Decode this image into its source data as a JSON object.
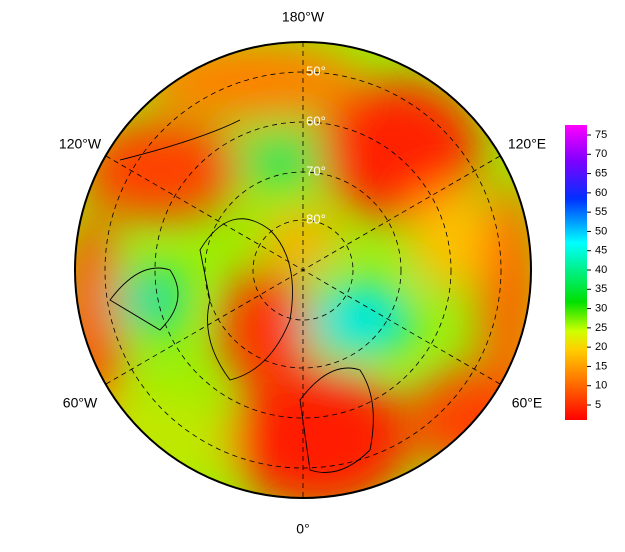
{
  "map": {
    "longitude_labels": [
      "180°W",
      "120°W",
      "120°E",
      "60°W",
      "60°E",
      "0°"
    ],
    "latitude_labels": [
      "50°",
      "60°",
      "70°",
      "80°"
    ],
    "colorbar": {
      "ticks": [
        5,
        10,
        15,
        20,
        25,
        30,
        35,
        40,
        45,
        50,
        55,
        60,
        65,
        70,
        75
      ]
    }
  }
}
